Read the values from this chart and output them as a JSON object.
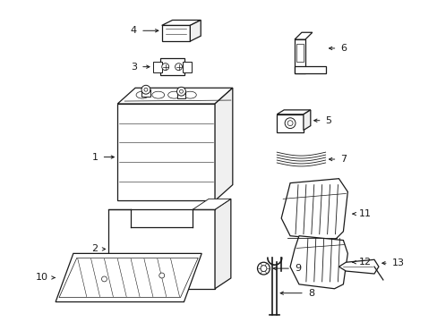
{
  "background_color": "#ffffff",
  "line_color": "#1a1a1a",
  "parts_labels": [
    1,
    2,
    3,
    4,
    5,
    6,
    7,
    8,
    9,
    10,
    11,
    12,
    13
  ],
  "figsize": [
    4.89,
    3.6
  ],
  "dpi": 100
}
